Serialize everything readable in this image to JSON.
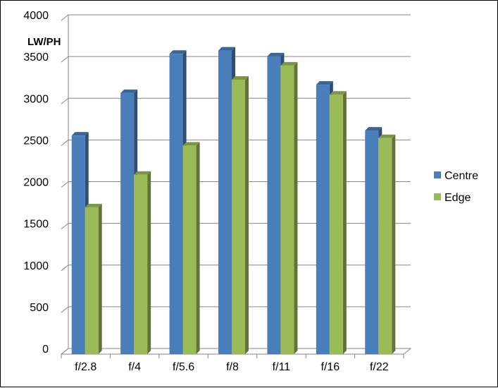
{
  "chart_data": {
    "type": "bar",
    "categories": [
      "f/2.8",
      "f/4",
      "f/5.6",
      "f/8",
      "f/11",
      "f/16",
      "f/22"
    ],
    "series": [
      {
        "name": "Centre",
        "values": [
          2620,
          3130,
          3600,
          3640,
          3570,
          3230,
          2680
        ],
        "color": "#4A7EBB"
      },
      {
        "name": "Edge",
        "values": [
          1760,
          2150,
          2500,
          3290,
          3460,
          3110,
          2590
        ],
        "color": "#9BBB59"
      }
    ],
    "ylabel": "LW/PH",
    "xlabel": "",
    "ylim": [
      0,
      4000
    ],
    "yticks": [
      0,
      500,
      1000,
      1500,
      2000,
      2500,
      3000,
      3500,
      4000
    ],
    "grid": true,
    "legend": "right",
    "style": "3d-clustered-column"
  }
}
